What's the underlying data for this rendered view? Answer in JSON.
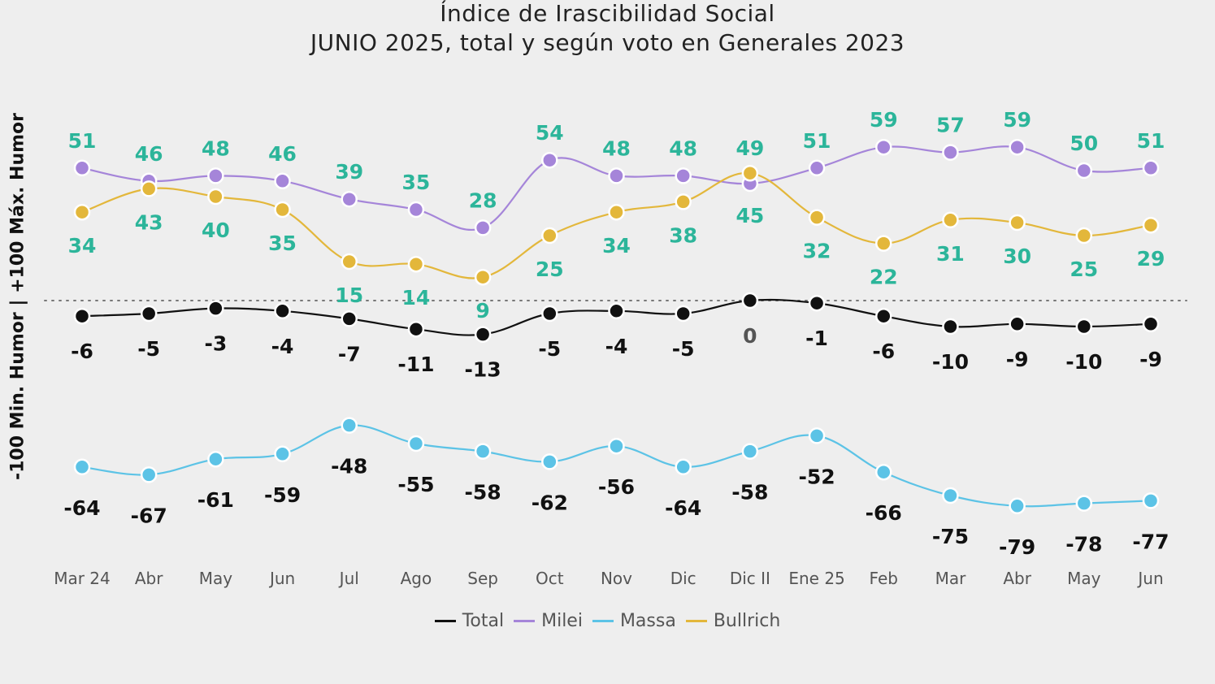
{
  "title": "Índice de Irascibilidad Social",
  "subtitle": "JUNIO 2025, total y según voto en Generales 2023",
  "chart_data": {
    "type": "line",
    "title": "Índice de Irascibilidad Social",
    "subtitle": "JUNIO 2025, total y según voto en Generales 2023",
    "ylabel": "-100 Min. Humor | +100 Máx. Humor",
    "xlabel": "",
    "categories": [
      "Mar 24",
      "Abr",
      "May",
      "Jun",
      "Jul",
      "Ago",
      "Sep",
      "Oct",
      "Nov",
      "Dic",
      "Dic II",
      "Ene 25",
      "Feb",
      "Mar",
      "Abr",
      "May",
      "Jun"
    ],
    "ylim": [
      -100,
      100
    ],
    "grid": false,
    "reference_line": 0,
    "legend_position": "bottom",
    "series": [
      {
        "name": "Total",
        "color": "#111111",
        "label_color": "#111111",
        "values": [
          -6,
          -5,
          -3,
          -4,
          -7,
          -11,
          -13,
          -5,
          -4,
          -5,
          0,
          -1,
          -6,
          -10,
          -9,
          -10,
          -9
        ]
      },
      {
        "name": "Milei",
        "color": "#a585d9",
        "label_color": "#2cb59a",
        "values": [
          51,
          46,
          48,
          46,
          39,
          35,
          28,
          54,
          48,
          48,
          45,
          51,
          59,
          57,
          59,
          50,
          51
        ]
      },
      {
        "name": "Massa",
        "color": "#5cc3e6",
        "label_color": "#111111",
        "values": [
          -64,
          -67,
          -61,
          -59,
          -48,
          -55,
          -58,
          -62,
          -56,
          -64,
          -58,
          -52,
          -66,
          -75,
          -79,
          -78,
          -77
        ]
      },
      {
        "name": "Bullrich",
        "color": "#e3b73b",
        "label_color": "#2cb59a",
        "values": [
          34,
          43,
          40,
          35,
          15,
          14,
          9,
          25,
          34,
          38,
          49,
          32,
          22,
          31,
          30,
          25,
          29
        ]
      }
    ]
  }
}
